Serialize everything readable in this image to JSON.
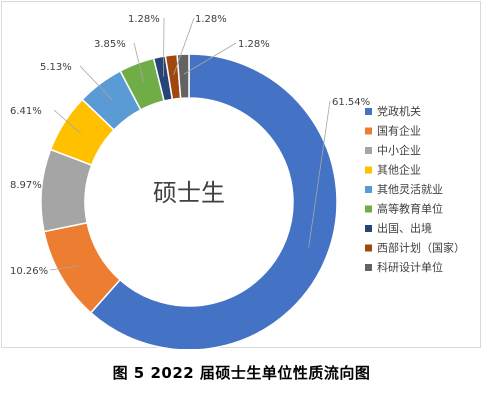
{
  "caption": "图 5   2022 届硕士生单位性质流向图",
  "chart_data": {
    "type": "pie",
    "variant": "donut",
    "center_label": "硕士生",
    "legend_position": "right",
    "slices": [
      {
        "name": "党政机关",
        "value": 61.54,
        "label": "61.54%",
        "color": "#4472C4"
      },
      {
        "name": "国有企业",
        "value": 10.26,
        "label": "10.26%",
        "color": "#ED7D31"
      },
      {
        "name": "中小企业",
        "value": 8.97,
        "label": "8.97%",
        "color": "#A5A5A5"
      },
      {
        "name": "其他企业",
        "value": 6.41,
        "label": "6.41%",
        "color": "#FFC000"
      },
      {
        "name": "其他灵活就业",
        "value": 5.13,
        "label": "5.13%",
        "color": "#5B9BD5"
      },
      {
        "name": "高等教育单位",
        "value": 3.85,
        "label": "3.85%",
        "color": "#70AD47"
      },
      {
        "name": "出国、出境",
        "value": 1.28,
        "label": "1.28%",
        "color": "#264478"
      },
      {
        "name": "西部计划（国家）",
        "value": 1.28,
        "label": "1.28%",
        "color": "#9E480E"
      },
      {
        "name": "科研设计单位",
        "value": 1.28,
        "label": "1.28%",
        "color": "#636363"
      }
    ]
  }
}
